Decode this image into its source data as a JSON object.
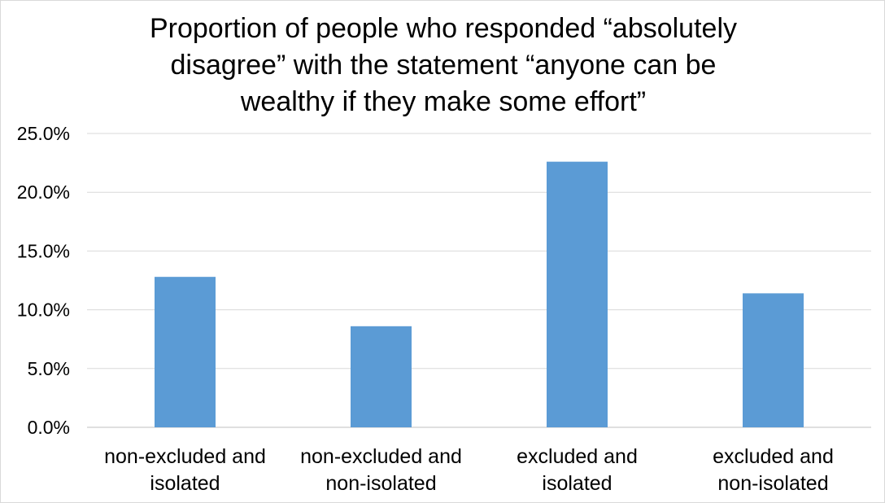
{
  "chart_data": {
    "type": "bar",
    "title_lines": [
      "Proportion of people who responded “absolutely",
      "disagree” with the statement “anyone can be",
      "wealthy if they make some effort”"
    ],
    "categories": [
      [
        "non-excluded and",
        "isolated"
      ],
      [
        "non-excluded and",
        "non-isolated"
      ],
      [
        "excluded and",
        "isolated"
      ],
      [
        "excluded and",
        "non-isolated"
      ]
    ],
    "values": [
      12.8,
      8.6,
      22.6,
      11.4
    ],
    "ylim": [
      0,
      25
    ],
    "yticks": [
      0,
      5,
      10,
      15,
      20,
      25
    ],
    "ytick_labels": [
      "0.0%",
      "5.0%",
      "10.0%",
      "15.0%",
      "20.0%",
      "25.0%"
    ],
    "grid": true,
    "bar_color": "#5b9bd5",
    "grid_color": "#d9d9d9"
  }
}
